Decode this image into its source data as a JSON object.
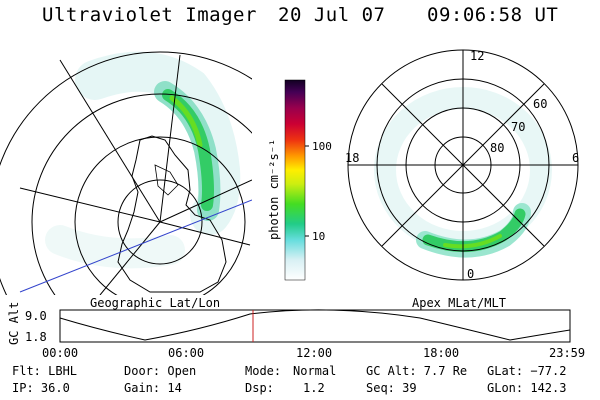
{
  "header": {
    "app_title": "Ultraviolet Imager",
    "date": "20 Jul 07",
    "time": "09:06:58 UT"
  },
  "left_map": {
    "caption": "Geographic Lat/Lon"
  },
  "right_map": {
    "caption": "Apex MLat/MLT",
    "mlt_labels": {
      "top": "12",
      "bottom": "0",
      "left": "18",
      "right": "6"
    },
    "lat_labels": [
      "60",
      "70",
      "80"
    ]
  },
  "colorbar": {
    "unit_label": "photon cm⁻²s⁻¹",
    "ticks": [
      "100",
      "10"
    ]
  },
  "altitude_strip": {
    "axis_label": "GC Alt",
    "y_ticks": [
      "9.0",
      "1.8"
    ],
    "x_ticks": [
      "00:00",
      "06:00",
      "12:00",
      "18:00",
      "23:59"
    ],
    "marker_color": "#cc2222"
  },
  "info": {
    "filter": "Flt: LBHL",
    "ip": "IP: 36.0",
    "door": "Door: Open",
    "gain": "Gain: 14",
    "mode_label": "Mode:",
    "mode_value": "Normal",
    "dsp_label": "Dsp:",
    "dsp_value": "1.2",
    "gc_alt": "GC Alt: 7.7 Re",
    "seq": "Seq: 39",
    "glat": "GLat: −77.2",
    "glon": "GLon: 142.3"
  }
}
